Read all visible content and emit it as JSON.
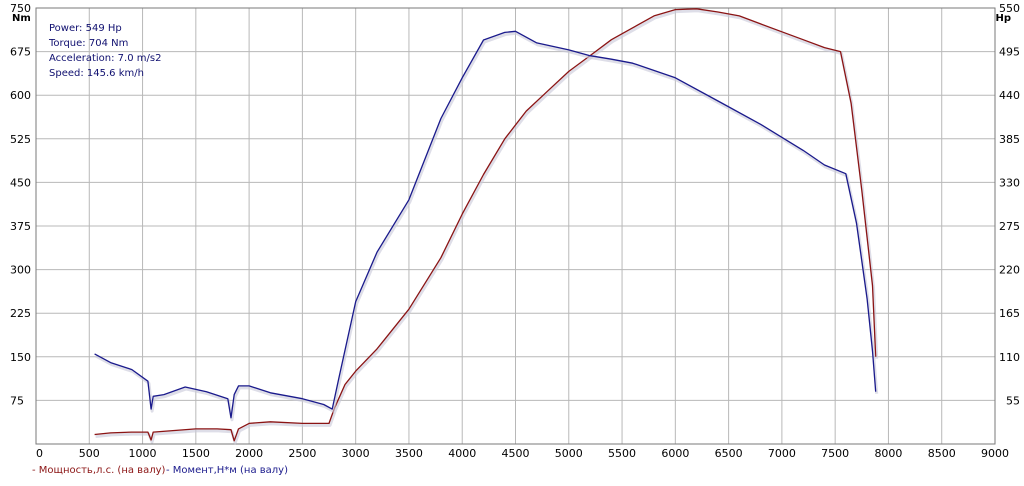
{
  "chart_data": {
    "type": "line",
    "x_axis": {
      "range": [
        0,
        9000
      ],
      "ticks": [
        0,
        500,
        1000,
        1500,
        2000,
        2500,
        3000,
        3500,
        4000,
        4500,
        5000,
        5500,
        6000,
        6500,
        7000,
        7500,
        8000,
        8500,
        9000
      ],
      "tick_labels": [
        "0",
        "500",
        "1000",
        "1500",
        "2000",
        "2500",
        "3000",
        "3500",
        "4000",
        "4500",
        "5000",
        "5500",
        "6000",
        "6500",
        "7000",
        "7500",
        "8000",
        "8500",
        "9000"
      ]
    },
    "y_left_axis": {
      "unit": "Nm",
      "range": [
        0,
        750
      ],
      "ticks": [
        75,
        150,
        225,
        300,
        375,
        450,
        525,
        600,
        675,
        750
      ],
      "tick_labels": [
        "75",
        "150",
        "225",
        "300",
        "375",
        "450",
        "525",
        "600",
        "675",
        "750"
      ]
    },
    "y_right_axis": {
      "unit": "Hp",
      "range": [
        0,
        550
      ],
      "ticks": [
        55,
        110,
        165,
        220,
        275,
        330,
        385,
        440,
        495,
        550
      ],
      "tick_labels": [
        "55",
        "110",
        "165",
        "220",
        "275",
        "330",
        "385",
        "440",
        "495",
        "550"
      ]
    },
    "grid": true,
    "legend_position": "bottom-left",
    "annotations": [
      "Power: 549 Hp",
      "Torque: 704 Nm",
      "Acceleration: 7.0 m/s2",
      "Speed: 145.6 km/h"
    ],
    "series": [
      {
        "name": "Мощность,л.с. (на валу)",
        "axis": "right",
        "color": "#8b1414",
        "x": [
          550,
          700,
          900,
          1050,
          1080,
          1100,
          1300,
          1500,
          1700,
          1830,
          1860,
          1900,
          2000,
          2200,
          2500,
          2750,
          2800,
          2900,
          3000,
          3200,
          3500,
          3800,
          4000,
          4200,
          4400,
          4600,
          4800,
          5000,
          5200,
          5400,
          5600,
          5800,
          6000,
          6200,
          6400,
          6600,
          6800,
          7000,
          7200,
          7400,
          7550,
          7650,
          7750,
          7850,
          7880
        ],
        "y": [
          12,
          14,
          15,
          15,
          5,
          15,
          17,
          19,
          19,
          18,
          4,
          19,
          26,
          28,
          26,
          26,
          45,
          75,
          92,
          120,
          170,
          235,
          290,
          340,
          385,
          420,
          445,
          470,
          490,
          510,
          525,
          540,
          548,
          549,
          545,
          540,
          530,
          520,
          510,
          500,
          495,
          430,
          320,
          200,
          110
        ]
      },
      {
        "name": "Момент,Н*м (на валу)",
        "axis": "left",
        "color": "#1a1a8c",
        "x": [
          550,
          700,
          900,
          1050,
          1080,
          1100,
          1200,
          1400,
          1600,
          1800,
          1830,
          1860,
          1900,
          2000,
          2200,
          2500,
          2700,
          2780,
          2850,
          3000,
          3200,
          3500,
          3800,
          4000,
          4200,
          4400,
          4500,
          4700,
          5000,
          5200,
          5400,
          5600,
          6000,
          6400,
          6800,
          7200,
          7400,
          7600,
          7700,
          7800,
          7850,
          7880
        ],
        "y": [
          155,
          140,
          128,
          108,
          60,
          82,
          85,
          98,
          90,
          78,
          45,
          85,
          100,
          100,
          88,
          78,
          68,
          60,
          120,
          245,
          330,
          420,
          560,
          630,
          695,
          708,
          710,
          690,
          678,
          668,
          662,
          655,
          630,
          590,
          550,
          505,
          480,
          465,
          380,
          250,
          160,
          90
        ]
      }
    ]
  }
}
